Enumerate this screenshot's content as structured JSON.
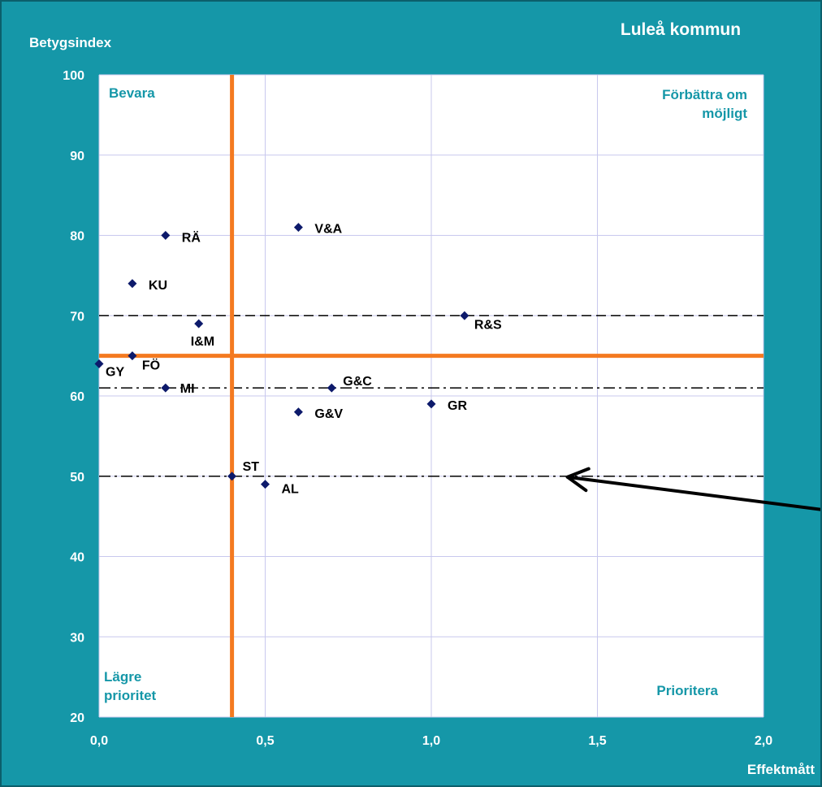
{
  "chart_data": {
    "type": "scatter",
    "title": "Luleå kommun",
    "ylabel": "Betygsindex",
    "xlabel": "Effektmått",
    "xlim": [
      0,
      2
    ],
    "ylim": [
      20,
      100
    ],
    "x_ticks": [
      0,
      0.5,
      1.0,
      1.5,
      2.0
    ],
    "x_tick_labels": [
      "0,0",
      "0,5",
      "1,0",
      "1,5",
      "2,0"
    ],
    "y_ticks": [
      20,
      30,
      40,
      50,
      60,
      70,
      80,
      90,
      100
    ],
    "y_tick_labels": [
      "20",
      "30",
      "40",
      "50",
      "60",
      "70",
      "80",
      "90",
      "100"
    ],
    "grid": true,
    "marker_color": "#0d1a6b",
    "quadrant_color": "#f47a20",
    "quadrant_text_color": "#1597a8",
    "background_color": "#1597a8",
    "quadrant_lines": {
      "x": 0.4,
      "y": 65
    },
    "reference_lines": [
      {
        "y": 70,
        "style": "dashed"
      },
      {
        "y": 61,
        "style": "dash-dot"
      },
      {
        "y": 50,
        "style": "dash-dot"
      }
    ],
    "quadrant_labels": {
      "top_left": "Bevara",
      "top_right": [
        "Förbättra om",
        "möjligt"
      ],
      "bottom_left": [
        "Lägre",
        "prioritet"
      ],
      "bottom_right": "Prioritera"
    },
    "points": [
      {
        "label": "RÄ",
        "x": 0.2,
        "y": 80
      },
      {
        "label": "V&A",
        "x": 0.6,
        "y": 81
      },
      {
        "label": "KU",
        "x": 0.1,
        "y": 74
      },
      {
        "label": "R&S",
        "x": 1.1,
        "y": 70
      },
      {
        "label": "I&M",
        "x": 0.3,
        "y": 69
      },
      {
        "label": "FÖ",
        "x": 0.1,
        "y": 65
      },
      {
        "label": "GY",
        "x": 0.0,
        "y": 64
      },
      {
        "label": "MI",
        "x": 0.2,
        "y": 61
      },
      {
        "label": "G&C",
        "x": 0.7,
        "y": 61
      },
      {
        "label": "GR",
        "x": 1.0,
        "y": 59
      },
      {
        "label": "G&V",
        "x": 0.6,
        "y": 58
      },
      {
        "label": "ST",
        "x": 0.4,
        "y": 50
      },
      {
        "label": "AL",
        "x": 0.5,
        "y": 49
      }
    ],
    "annotation_arrow": {
      "from": {
        "x": 2.22,
        "y": 45.6
      },
      "to": {
        "x": 1.41,
        "y": 49.9
      }
    }
  }
}
